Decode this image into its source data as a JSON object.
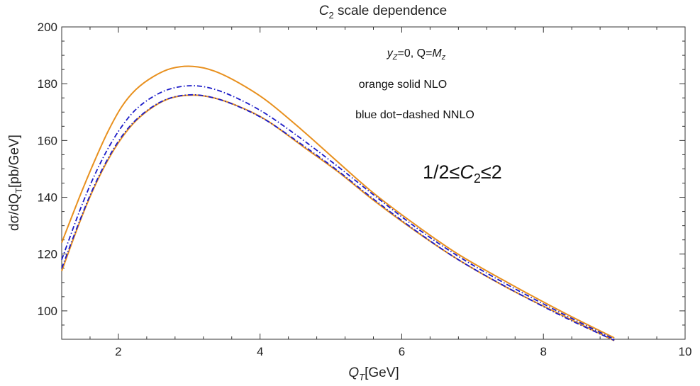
{
  "chart_data": {
    "type": "line",
    "title": "C2 scale dependence",
    "title_parts": {
      "symbol": "C",
      "sub": "2",
      "rest": " scale dependence"
    },
    "xlabel": "QT[GeV]",
    "xlabel_parts": {
      "symbol": "Q",
      "sub": "T",
      "rest": "[GeV]"
    },
    "ylabel": "dσ/dQT[pb/GeV]",
    "ylabel_parts": {
      "main": "dσ/dQ",
      "sub": "T",
      "rest": "[pb/GeV]"
    },
    "xlim": [
      1.2,
      10
    ],
    "ylim": [
      90,
      200
    ],
    "xticks": [
      2,
      4,
      6,
      8,
      10
    ],
    "yticks": [
      100,
      120,
      140,
      160,
      180,
      200
    ],
    "grid": false,
    "annotations": {
      "line1_parts": {
        "y": "y",
        "ysub": "Z",
        "mid": "=0, Q=",
        "m": "M",
        "msub": "z"
      },
      "line2": "orange solid NLO",
      "line3": "blue dot−dashed NNLO",
      "scale_parts": {
        "left": "1/2≤",
        "c": "C",
        "csub": "2",
        "right": "≤2"
      }
    },
    "series": [
      {
        "color": "#E8901E",
        "style": "solid",
        "x": [
          1.2,
          1.45,
          1.65,
          1.85,
          2.05,
          2.25,
          2.5,
          2.75,
          3.05,
          3.35,
          3.7,
          4.1,
          4.6,
          5.1,
          5.6,
          6.2,
          6.8,
          7.5,
          8.3,
          9.0
        ],
        "y": [
          124,
          140,
          152,
          163,
          172,
          178,
          182.6,
          185.4,
          186.1,
          184.5,
          180.3,
          173.9,
          163.5,
          152.4,
          141.5,
          130.2,
          119.9,
          109.9,
          99.2,
          90.5
        ]
      },
      {
        "color": "#E8901E",
        "style": "solid",
        "x": [
          1.2,
          1.45,
          1.65,
          1.85,
          2.05,
          2.25,
          2.5,
          2.75,
          3.05,
          3.35,
          3.7,
          4.1,
          4.6,
          5.1,
          5.6,
          6.2,
          6.8,
          7.5,
          8.3,
          9.0
        ],
        "y": [
          114,
          131,
          143,
          153,
          161,
          167,
          172,
          175,
          176,
          175,
          172,
          167,
          158,
          149,
          139,
          128,
          118,
          108,
          98,
          89.5
        ]
      },
      {
        "color": "#1B1BC8",
        "style": "dotdash",
        "x": [
          1.2,
          1.45,
          1.65,
          1.85,
          2.05,
          2.25,
          2.5,
          2.75,
          3.05,
          3.35,
          3.7,
          4.1,
          4.6,
          5.1,
          5.6,
          6.2,
          6.8,
          7.5,
          8.3,
          9.0
        ],
        "y": [
          118,
          135,
          147,
          157,
          165,
          171,
          175.6,
          178.3,
          179.3,
          178.1,
          174.6,
          169.1,
          160.3,
          150.8,
          140.9,
          129.4,
          119.2,
          109.1,
          98.6,
          90.0
        ]
      },
      {
        "color": "#1B1BC8",
        "style": "dotdash",
        "x": [
          1.2,
          1.45,
          1.65,
          1.85,
          2.05,
          2.25,
          2.5,
          2.75,
          3.05,
          3.35,
          3.7,
          4.1,
          4.6,
          5.1,
          5.6,
          6.2,
          6.8,
          7.5,
          8.3,
          9.0
        ],
        "y": [
          115,
          131.5,
          143.5,
          153.5,
          161.5,
          167.3,
          172.2,
          175.1,
          176.1,
          175.0,
          171.9,
          166.9,
          158.4,
          149.3,
          139.4,
          128.2,
          118.0,
          108.1,
          97.7,
          89.6
        ]
      }
    ]
  }
}
